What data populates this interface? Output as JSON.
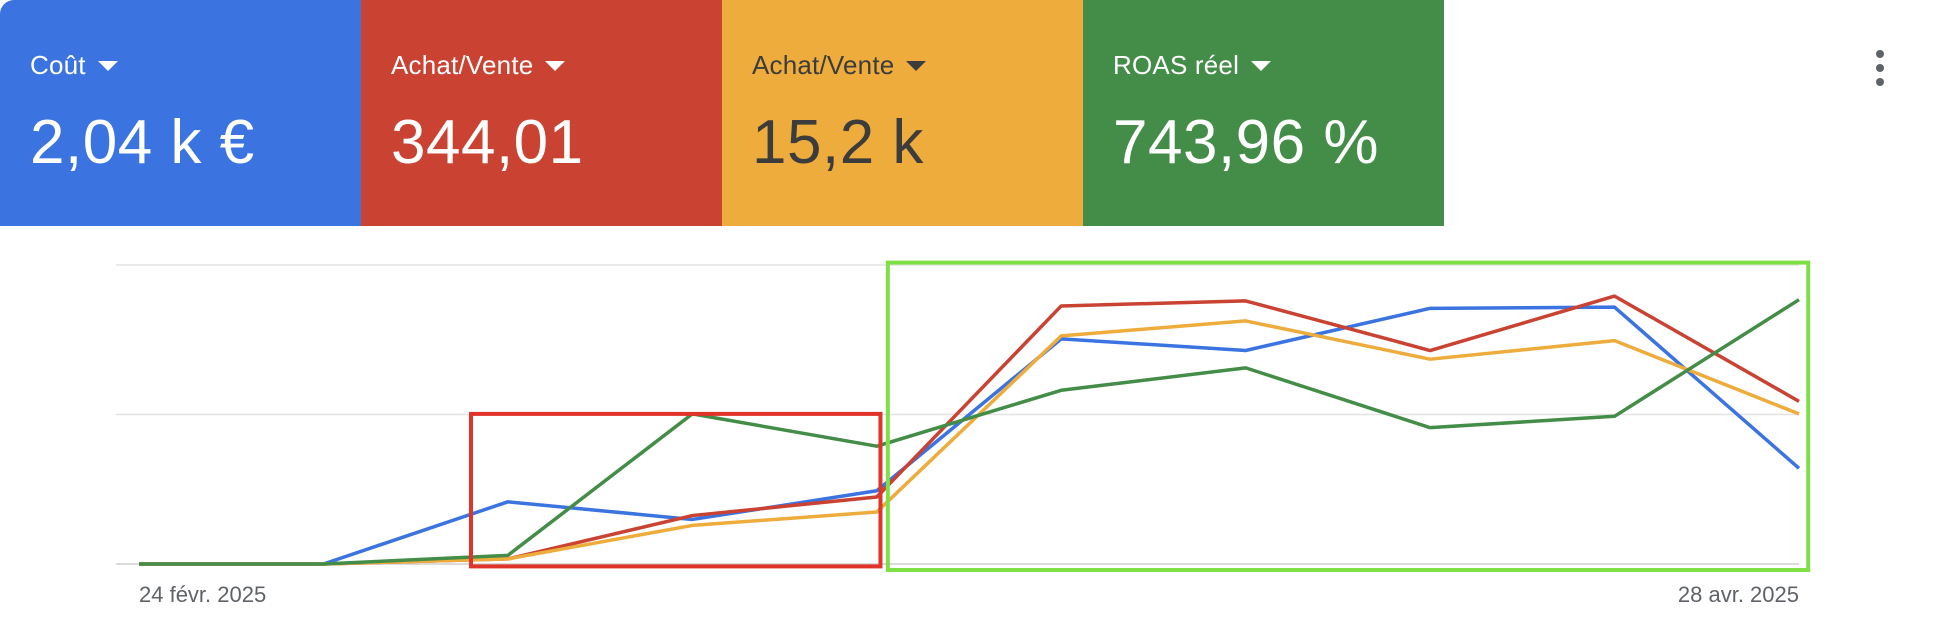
{
  "metrics": [
    {
      "label": "Coût",
      "value": "2,04 k €",
      "color": "#3b74e0",
      "text_color": "#ffffff"
    },
    {
      "label": "Achat/Vente",
      "value": "344,01",
      "color": "#c94232",
      "text_color": "#ffffff"
    },
    {
      "label": "Achat/Vente",
      "value": "15,2 k",
      "color": "#edac3c",
      "text_color": "#3c3c3c"
    },
    {
      "label": "ROAS réel",
      "value": "743,96 %",
      "color": "#448d48",
      "text_color": "#ffffff"
    }
  ],
  "menu_icon": "more-vert-icon",
  "chart_data": {
    "type": "line",
    "x": [
      0,
      1,
      2,
      3,
      4,
      5,
      6,
      7,
      8,
      9
    ],
    "x_tick_labels": {
      "first": "24 févr. 2025",
      "last": "28 avr. 2025"
    },
    "ylim": [
      0,
      100
    ],
    "grid": true,
    "series": [
      {
        "color": "#3b74e0",
        "values": [
          0,
          0,
          20.8,
          14.9,
          24.5,
          75.3,
          71.4,
          85.5,
          85.9,
          32.0
        ]
      },
      {
        "color": "#c94232",
        "values": [
          0,
          0,
          1.7,
          16.2,
          22.4,
          86.3,
          88.0,
          71.4,
          89.6,
          54.4
        ]
      },
      {
        "color": "#edac3c",
        "values": [
          0,
          0,
          1.7,
          12.9,
          17.4,
          76.3,
          81.3,
          68.5,
          74.7,
          50.2
        ]
      },
      {
        "color": "#448d48",
        "values": [
          0,
          0,
          2.9,
          50.2,
          39.4,
          58.1,
          65.6,
          45.6,
          49.4,
          88.4
        ]
      }
    ],
    "annotations": [
      {
        "shape": "rectangle",
        "color": "#e0332a",
        "x_from": 1.8,
        "x_to": 4.02,
        "y_from": -0.8,
        "y_to": 50.2
      },
      {
        "shape": "rectangle",
        "color": "#7fe046",
        "x_from": 4.06,
        "x_to": 9.05,
        "y_from": -2.0,
        "y_to": 100.8
      }
    ]
  }
}
